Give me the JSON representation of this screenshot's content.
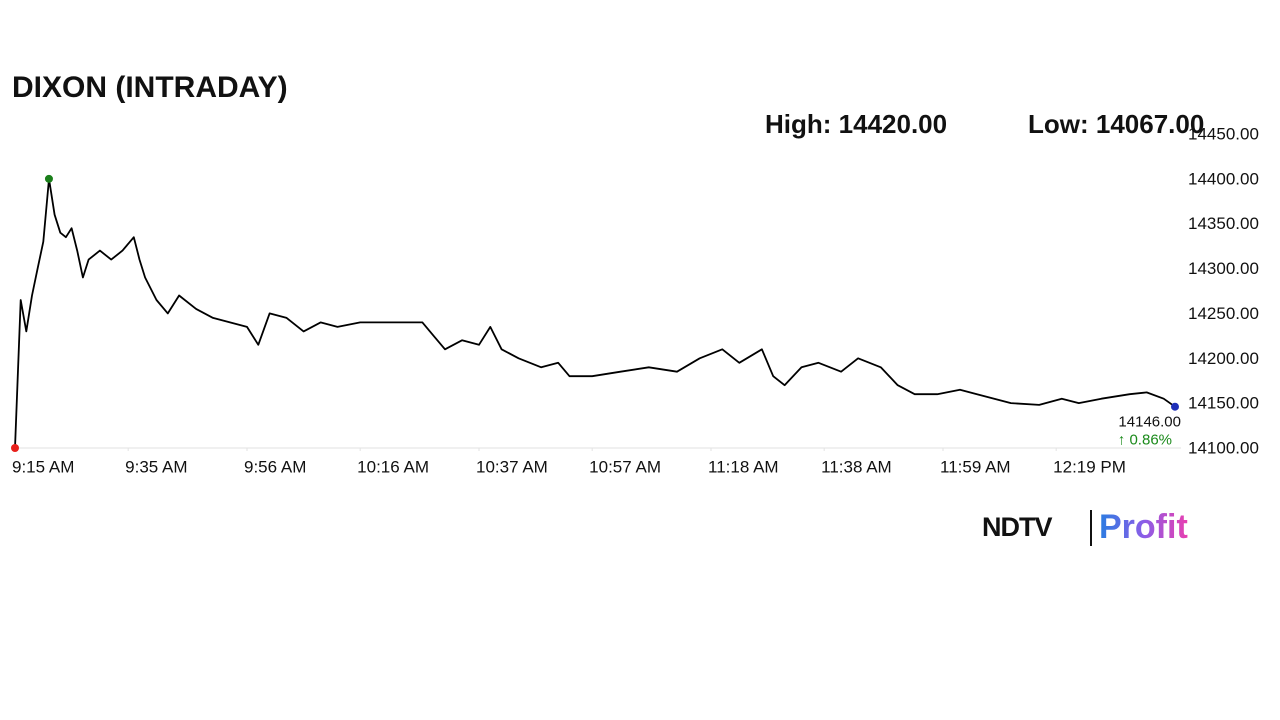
{
  "chart_data": {
    "type": "line",
    "title": "DIXON (INTRADAY)",
    "high_text": "High: 14420.00",
    "low_text": "Low: 14067.00",
    "last_value_label": "14146.00",
    "change_label": "↑ 0.86%",
    "brand": {
      "name": "NDTV",
      "product": "Profit"
    },
    "x": [
      "9:15 AM",
      "9:16 AM",
      "9:17 AM",
      "9:18 AM",
      "9:19 AM",
      "9:20 AM",
      "9:21 AM",
      "9:22 AM",
      "9:23 AM",
      "9:24 AM",
      "9:25 AM",
      "9:26 AM",
      "9:27 AM",
      "9:28 AM",
      "9:30 AM",
      "9:32 AM",
      "9:34 AM",
      "9:36 AM",
      "9:37 AM",
      "9:38 AM",
      "9:40 AM",
      "9:42 AM",
      "9:44 AM",
      "9:47 AM",
      "9:50 AM",
      "9:53 AM",
      "9:56 AM",
      "9:58 AM",
      "10:00 AM",
      "10:03 AM",
      "10:06 AM",
      "10:09 AM",
      "10:12 AM",
      "10:16 AM",
      "10:19 AM",
      "10:23 AM",
      "10:27 AM",
      "10:29 AM",
      "10:31 AM",
      "10:34 AM",
      "10:37 AM",
      "10:39 AM",
      "10:41 AM",
      "10:44 AM",
      "10:48 AM",
      "10:51 AM",
      "10:53 AM",
      "10:57 AM",
      "11:02 AM",
      "11:07 AM",
      "11:12 AM",
      "11:16 AM",
      "11:20 AM",
      "11:23 AM",
      "11:27 AM",
      "11:29 AM",
      "11:31 AM",
      "11:34 AM",
      "11:37 AM",
      "11:41 AM",
      "11:44 AM",
      "11:48 AM",
      "11:51 AM",
      "11:54 AM",
      "11:58 AM",
      "12:02 PM",
      "12:05 PM",
      "12:11 PM",
      "12:16 PM",
      "12:20 PM",
      "12:23 PM",
      "12:27 PM",
      "12:32 PM",
      "12:35 PM",
      "12:38 PM",
      "12:40 PM"
    ],
    "series": [
      {
        "name": "DIXON",
        "color": "#000000",
        "values": [
          14100,
          14265,
          14230,
          14270,
          14300,
          14330,
          14400,
          14360,
          14340,
          14335,
          14345,
          14320,
          14290,
          14310,
          14320,
          14310,
          14320,
          14335,
          14310,
          14290,
          14265,
          14250,
          14270,
          14255,
          14245,
          14240,
          14235,
          14215,
          14250,
          14245,
          14230,
          14240,
          14235,
          14240,
          14240,
          14240,
          14240,
          14225,
          14210,
          14220,
          14215,
          14235,
          14210,
          14200,
          14190,
          14195,
          14180,
          14180,
          14185,
          14190,
          14185,
          14200,
          14210,
          14195,
          14210,
          14180,
          14170,
          14190,
          14195,
          14185,
          14200,
          14190,
          14170,
          14160,
          14160,
          14165,
          14160,
          14150,
          14148,
          14155,
          14150,
          14155,
          14160,
          14162,
          14155,
          14146
        ]
      }
    ],
    "first_point_color": "#e8211c",
    "max_point_color": "#1a7f1a",
    "last_point_color": "#1f2fb8",
    "change_color": "#1a8a1a",
    "xlim": [
      "9:15 AM",
      "12:40 PM"
    ],
    "xticks": [
      "9:15 AM",
      "9:35 AM",
      "9:56 AM",
      "10:16 AM",
      "10:37 AM",
      "10:57 AM",
      "11:18 AM",
      "11:38 AM",
      "11:59 AM",
      "12:19 PM"
    ],
    "ylim": [
      14100,
      14450
    ],
    "yticks": [
      {
        "value": 14100,
        "label": "14100.00"
      },
      {
        "value": 14150,
        "label": "14150.00"
      },
      {
        "value": 14200,
        "label": "14200.00"
      },
      {
        "value": 14250,
        "label": "14250.00"
      },
      {
        "value": 14300,
        "label": "14300.00"
      },
      {
        "value": 14350,
        "label": "14350.00"
      },
      {
        "value": 14400,
        "label": "14400.00"
      },
      {
        "value": 14450,
        "label": "14450.00"
      }
    ],
    "grid": false
  }
}
